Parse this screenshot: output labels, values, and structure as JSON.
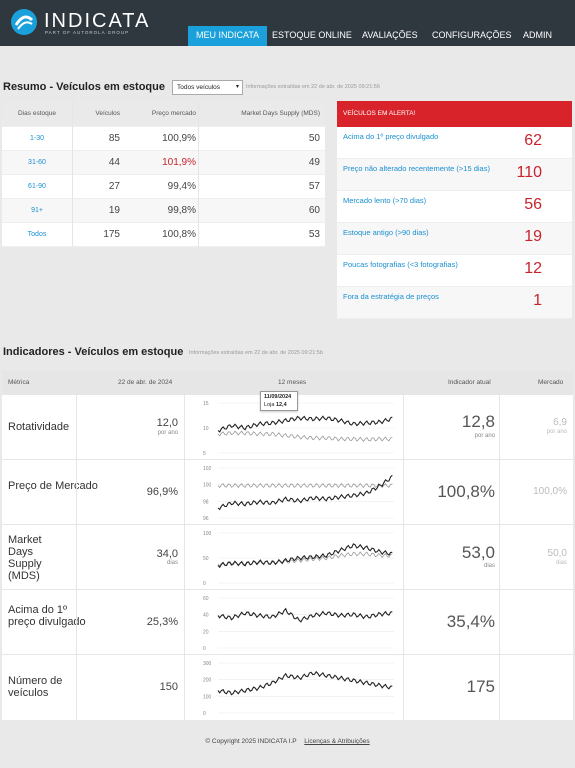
{
  "header": {
    "logo_text": "INDICATA",
    "logo_sub": "PART OF AUTOROLA GROUP",
    "nav": [
      {
        "label": "MEU INDICATA",
        "active": true
      },
      {
        "label": "ESTOQUE ONLINE"
      },
      {
        "label": "AVALIAÇÕES"
      },
      {
        "label": "CONFIGURAÇÕES"
      },
      {
        "label": "ADMIN"
      }
    ]
  },
  "summary": {
    "title": "Resumo - Veículos em estoque",
    "filter_value": "Todos veículos",
    "note": "Informações extraídas em 22 de abr. de 2025 09:21:56",
    "columns": [
      "Dias estoque",
      "Veículos",
      "Preço mercado",
      "Market Days Supply (MDS)"
    ],
    "rows": [
      {
        "range": "1-30",
        "vehicles": "85",
        "price": "100,9%",
        "mds": "50",
        "price_alert": false
      },
      {
        "range": "31-60",
        "vehicles": "44",
        "price": "101,9%",
        "mds": "49",
        "price_alert": true
      },
      {
        "range": "61-90",
        "vehicles": "27",
        "price": "99,4%",
        "mds": "57",
        "price_alert": false
      },
      {
        "range": "91+",
        "vehicles": "19",
        "price": "99,8%",
        "mds": "60",
        "price_alert": false
      },
      {
        "range": "Todos",
        "vehicles": "175",
        "price": "100,8%",
        "mds": "53",
        "price_alert": false
      }
    ]
  },
  "alerts": {
    "title": "VEÍCULOS EM ALERTA!",
    "items": [
      {
        "label": "Acima do 1º preço divulgado",
        "value": "62"
      },
      {
        "label": "Preço não alterado recentemente (>15 dias)",
        "value": "110"
      },
      {
        "label": "Mercado lento (>70 dias)",
        "value": "56"
      },
      {
        "label": "Estoque antigo (>90 dias)",
        "value": "19"
      },
      {
        "label": "Poucas fotografias (<3 fotografias)",
        "value": "12"
      },
      {
        "label": "Fora da estratégia de preços",
        "value": "1"
      }
    ]
  },
  "indicators": {
    "title": "Indicadores - Veículos em estoque",
    "note": "Informações extraídas em 22 de abr. de 2025 09:21:5b",
    "columns": {
      "metric": "Métrica",
      "date": "22 de abr. de 2024",
      "period": "12 meses",
      "current": "Indicador atual",
      "market": "Mercado"
    },
    "rows": [
      {
        "name": "Rotatividade",
        "past": "12,0",
        "past_unit": "por ano",
        "current": "12,8",
        "current_unit": "por ano",
        "market": "6,9",
        "market_unit": "por ano",
        "axis": [
          "15",
          "10",
          "5"
        ]
      },
      {
        "name": "Preço de Mercado",
        "past": "96,9%",
        "past_unit": "",
        "current": "100,8%",
        "current_unit": "",
        "market": "100,0%",
        "market_unit": "",
        "axis": [
          "102",
          "100",
          "98",
          "96"
        ]
      },
      {
        "name": "Market Days Supply (MDS)",
        "past": "34,0",
        "past_unit": "dias",
        "current": "53,0",
        "current_unit": "dias",
        "market": "50,0",
        "market_unit": "dias",
        "axis": [
          "100",
          "50",
          "0"
        ]
      },
      {
        "name": "Acima do 1º preço divulgado",
        "past": "25,3%",
        "past_unit": "",
        "current": "35,4%",
        "current_unit": "",
        "market": "",
        "market_unit": "",
        "axis": [
          "60",
          "40",
          "20",
          "0"
        ]
      },
      {
        "name": "Número de veículos",
        "past": "150",
        "past_unit": "",
        "current": "175",
        "current_unit": "",
        "market": "",
        "market_unit": "",
        "axis": [
          "300",
          "200",
          "100",
          "0"
        ]
      }
    ],
    "tooltip": {
      "date": "11/09/2024",
      "label": "Loja",
      "value": "12,4"
    }
  },
  "footer": {
    "copyright": "© Copyright 2025 INDICATA I.P",
    "link": "Licenças & Atribuições"
  },
  "colors": {
    "accent": "#1aa0da",
    "alert": "#d8232a",
    "header_bg": "#2f373f"
  }
}
